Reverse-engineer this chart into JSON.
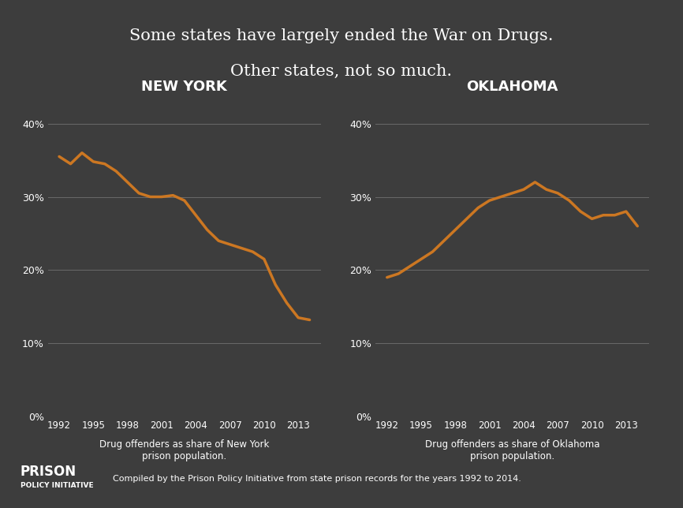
{
  "title_line1": "Some states have largely ended the War on Drugs.",
  "title_line2": "Other states, not so much.",
  "background_color": "#3d3d3d",
  "text_color": "#ffffff",
  "line_color": "#cc7722",
  "grid_color": "#888888",
  "ny_label": "NEW YORK",
  "ok_label": "OKLAHOMA",
  "ny_xlabel": "Drug offenders as share of New York\nprison population.",
  "ok_xlabel": "Drug offenders as share of Oklahoma\nprison population.",
  "footer": "Compiled by the Prison Policy Initiative from state prison records for the years 1992 to 2014.",
  "yticks": [
    0,
    10,
    20,
    30,
    40
  ],
  "xticks": [
    1992,
    1995,
    1998,
    2001,
    2004,
    2007,
    2010,
    2013
  ],
  "ny_years": [
    1992,
    1993,
    1994,
    1995,
    1996,
    1997,
    1998,
    1999,
    2000,
    2001,
    2002,
    2003,
    2004,
    2005,
    2006,
    2007,
    2008,
    2009,
    2010,
    2011,
    2012,
    2013,
    2014
  ],
  "ny_values": [
    35.5,
    34.5,
    36.0,
    34.8,
    34.5,
    33.5,
    32.0,
    30.5,
    30.0,
    30.0,
    30.2,
    29.5,
    27.5,
    25.5,
    24.0,
    23.5,
    23.0,
    22.5,
    21.5,
    18.0,
    15.5,
    13.5,
    13.2
  ],
  "ok_years": [
    1992,
    1993,
    1994,
    1995,
    1996,
    1997,
    1998,
    1999,
    2000,
    2001,
    2002,
    2003,
    2004,
    2005,
    2006,
    2007,
    2008,
    2009,
    2010,
    2011,
    2012,
    2013,
    2014
  ],
  "ok_values": [
    19.0,
    19.5,
    20.5,
    21.5,
    22.5,
    24.0,
    25.5,
    27.0,
    28.5,
    29.5,
    30.0,
    30.5,
    31.0,
    32.0,
    31.0,
    30.5,
    29.5,
    28.0,
    27.0,
    27.5,
    27.5,
    28.0,
    26.0
  ]
}
